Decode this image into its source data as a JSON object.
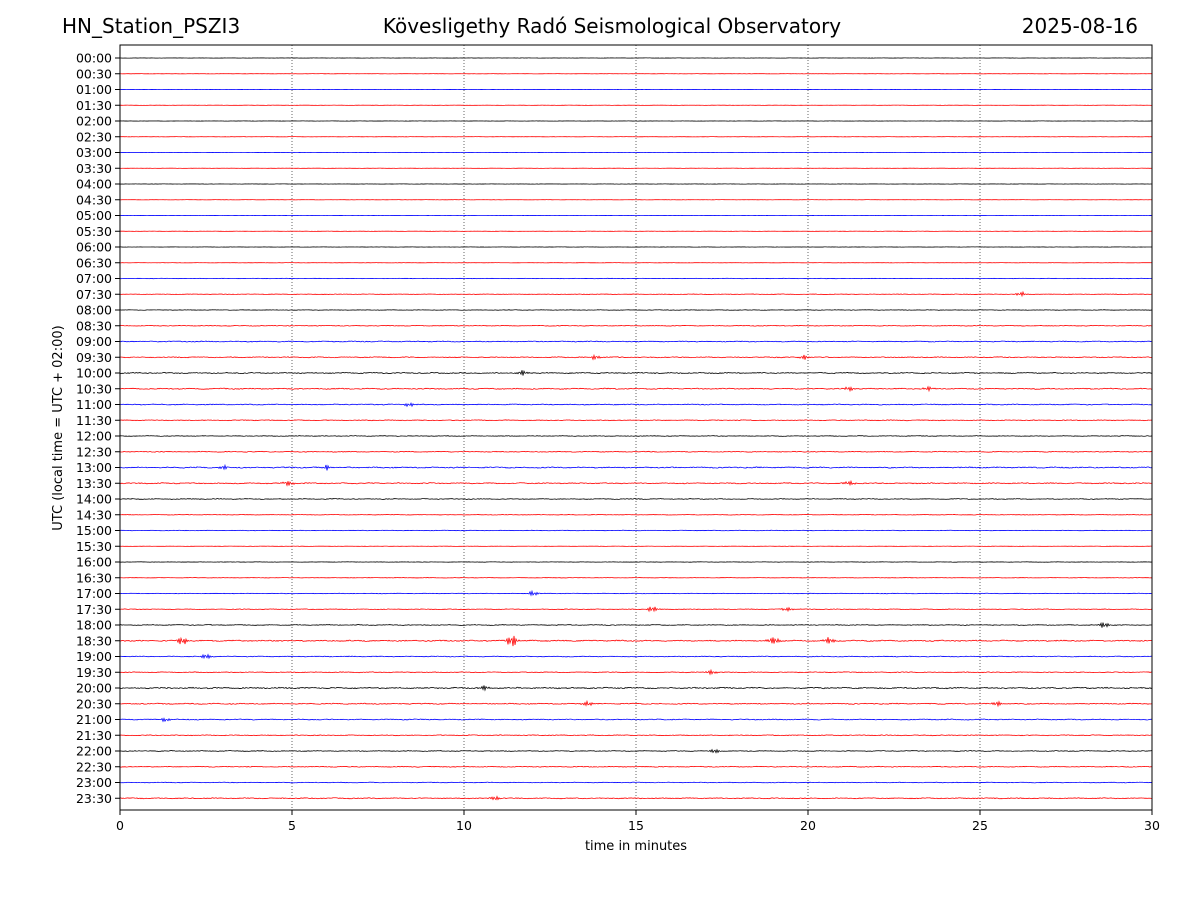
{
  "header": {
    "station": "HN_Station_PSZI3",
    "observatory": "Kövesligethy Radó Seismological Observatory",
    "date": "2025-08-16"
  },
  "chart_data": {
    "type": "line",
    "title": "Kövesligethy Radó Seismological Observatory",
    "xlabel": "time in minutes",
    "ylabel": "UTC (local time = UTC + 02:00)",
    "xlim": [
      0,
      30
    ],
    "xticks": [
      0,
      5,
      10,
      15,
      20,
      25,
      30
    ],
    "grid": "vertical dotted lines at 5, 10, 15, 20, 25",
    "row_labels": [
      "00:00",
      "00:30",
      "01:00",
      "01:30",
      "02:00",
      "02:30",
      "03:00",
      "03:30",
      "04:00",
      "04:30",
      "05:00",
      "05:30",
      "06:00",
      "06:30",
      "07:00",
      "07:30",
      "08:00",
      "08:30",
      "09:00",
      "09:30",
      "10:00",
      "10:30",
      "11:00",
      "11:30",
      "12:00",
      "12:30",
      "13:00",
      "13:30",
      "14:00",
      "14:30",
      "15:00",
      "15:30",
      "16:00",
      "16:30",
      "17:00",
      "17:30",
      "18:00",
      "18:30",
      "19:00",
      "19:30",
      "20:00",
      "20:30",
      "21:00",
      "21:30",
      "22:00",
      "22:30",
      "23:00",
      "23:30"
    ],
    "row_colors_cycle": [
      "#000000",
      "#ff0000",
      "#0000ff",
      "#ff0000"
    ],
    "row_noise_level": [
      0.2,
      0.2,
      0.2,
      0.2,
      0.2,
      0.2,
      0.2,
      0.2,
      0.2,
      0.2,
      0.2,
      0.2,
      0.2,
      0.2,
      0.3,
      0.4,
      0.4,
      0.5,
      0.7,
      0.7,
      0.8,
      0.8,
      0.7,
      0.6,
      0.5,
      0.6,
      0.9,
      0.8,
      0.6,
      0.4,
      0.4,
      0.2,
      0.3,
      0.3,
      0.4,
      0.5,
      0.6,
      0.9,
      0.6,
      0.6,
      1.0,
      0.8,
      0.7,
      0.6,
      0.6,
      0.6,
      0.5,
      0.7
    ],
    "events": [
      {
        "row": "07:30",
        "minute": 26.2,
        "amp": 2.5
      },
      {
        "row": "09:30",
        "minute": 13.8,
        "amp": 2.5
      },
      {
        "row": "09:30",
        "minute": 19.9,
        "amp": 2.5
      },
      {
        "row": "10:00",
        "minute": 11.7,
        "amp": 3.0
      },
      {
        "row": "10:30",
        "minute": 21.2,
        "amp": 2.5
      },
      {
        "row": "10:30",
        "minute": 23.5,
        "amp": 2.5
      },
      {
        "row": "11:00",
        "minute": 8.4,
        "amp": 2.5
      },
      {
        "row": "13:00",
        "minute": 3.0,
        "amp": 2.5
      },
      {
        "row": "13:00",
        "minute": 6.0,
        "amp": 3.0
      },
      {
        "row": "13:30",
        "minute": 4.9,
        "amp": 3.5
      },
      {
        "row": "13:30",
        "minute": 21.2,
        "amp": 2.5
      },
      {
        "row": "17:00",
        "minute": 12.0,
        "amp": 3.0
      },
      {
        "row": "17:30",
        "minute": 15.5,
        "amp": 4.0
      },
      {
        "row": "17:30",
        "minute": 19.4,
        "amp": 2.5
      },
      {
        "row": "18:00",
        "minute": 28.6,
        "amp": 3.0
      },
      {
        "row": "18:30",
        "minute": 1.8,
        "amp": 4.5
      },
      {
        "row": "18:30",
        "minute": 11.4,
        "amp": 7.0
      },
      {
        "row": "18:30",
        "minute": 19.0,
        "amp": 5.0
      },
      {
        "row": "18:30",
        "minute": 20.6,
        "amp": 4.0
      },
      {
        "row": "19:00",
        "minute": 2.5,
        "amp": 3.0
      },
      {
        "row": "19:30",
        "minute": 17.2,
        "amp": 2.5
      },
      {
        "row": "20:00",
        "minute": 10.6,
        "amp": 3.0
      },
      {
        "row": "20:30",
        "minute": 13.6,
        "amp": 3.0
      },
      {
        "row": "20:30",
        "minute": 25.5,
        "amp": 3.0
      },
      {
        "row": "21:00",
        "minute": 1.3,
        "amp": 2.5
      },
      {
        "row": "22:00",
        "minute": 17.3,
        "amp": 2.5
      },
      {
        "row": "23:30",
        "minute": 10.9,
        "amp": 2.5
      }
    ]
  }
}
